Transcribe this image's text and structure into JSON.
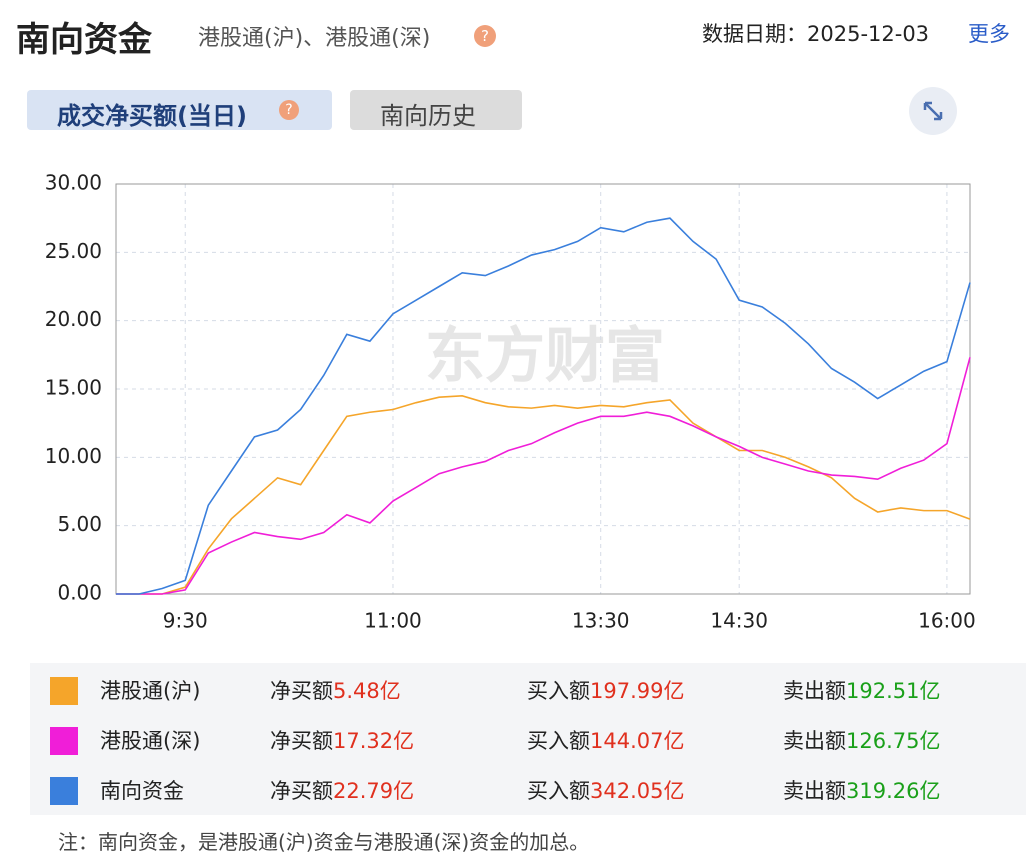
{
  "header": {
    "title": "南向资金",
    "subtitle": "港股通(沪)、港股通(深)",
    "date": "数据日期：2025-12-03",
    "more": "更多"
  },
  "tabs": [
    "成交净买额(当日)",
    "南向历史"
  ],
  "watermark": "东方财富",
  "chart_data": {
    "type": "line",
    "categories": [
      null,
      null,
      null,
      "9:30",
      null,
      null,
      null,
      null,
      null,
      null,
      null,
      null,
      "11:00",
      null,
      null,
      null,
      null,
      null,
      null,
      null,
      null,
      "13:30",
      null,
      null,
      null,
      null,
      null,
      "14:30",
      null,
      null,
      null,
      null,
      null,
      null,
      null,
      null,
      "16:00",
      null
    ],
    "ylim": [
      0,
      30
    ],
    "yticks": [
      {
        "value": 0,
        "label": "0.00"
      },
      {
        "value": 5,
        "label": "5.00"
      },
      {
        "value": 10,
        "label": "10.00"
      },
      {
        "value": 15,
        "label": "15.00"
      },
      {
        "value": 20,
        "label": "20.00"
      },
      {
        "value": 25,
        "label": "25.00"
      },
      {
        "value": 30,
        "label": "30.00"
      }
    ],
    "grid": true,
    "series": [
      {
        "name": "港股通(沪)",
        "color": "#f5a52a",
        "values": [
          0,
          0,
          0,
          0.5,
          3.3,
          5.5,
          7,
          8.5,
          8,
          10.5,
          13,
          13.3,
          13.5,
          14,
          14.4,
          14.5,
          14,
          13.7,
          13.6,
          13.8,
          13.6,
          13.8,
          13.7,
          14,
          14.2,
          12.5,
          11.5,
          10.5,
          10.5,
          10,
          9.3,
          8.5,
          7,
          6,
          6.3,
          6.1,
          6.1,
          5.48
        ]
      },
      {
        "name": "港股通(深)",
        "color": "#f01ed8",
        "values": [
          0,
          0,
          0,
          0.3,
          3,
          3.8,
          4.5,
          4.2,
          4,
          4.5,
          5.8,
          5.2,
          6.8,
          7.8,
          8.8,
          9.3,
          9.7,
          10.5,
          11,
          11.8,
          12.5,
          13,
          13,
          13.3,
          13,
          12.3,
          11.5,
          10.8,
          10,
          9.5,
          9,
          8.7,
          8.6,
          8.4,
          9.2,
          9.8,
          11,
          17.32
        ]
      },
      {
        "name": "南向资金",
        "color": "#3a7fdc",
        "values": [
          0,
          0,
          0.4,
          1,
          6.5,
          9,
          11.5,
          12,
          13.5,
          16,
          19,
          18.5,
          20.5,
          21.5,
          22.5,
          23.5,
          23.3,
          24,
          24.8,
          25.2,
          25.8,
          26.8,
          26.5,
          27.2,
          27.5,
          25.8,
          24.5,
          21.5,
          21,
          19.8,
          18.3,
          16.5,
          15.5,
          14.3,
          15.3,
          16.3,
          17,
          22.79
        ]
      }
    ]
  },
  "summary": [
    {
      "net_label": "净买额",
      "net": "5.48亿",
      "buy_label": "买入额",
      "buy": "197.99亿",
      "sell_label": "卖出额",
      "sell": "192.51亿"
    },
    {
      "net_label": "净买额",
      "net": "17.32亿",
      "buy_label": "买入额",
      "buy": "144.07亿",
      "sell_label": "卖出额",
      "sell": "126.75亿"
    },
    {
      "net_label": "净买额",
      "net": "22.79亿",
      "buy_label": "买入额",
      "buy": "342.05亿",
      "sell_label": "卖出额",
      "sell": "319.26亿"
    }
  ],
  "note": "注：南向资金，是港股通(沪)资金与港股通(深)资金的加总。"
}
